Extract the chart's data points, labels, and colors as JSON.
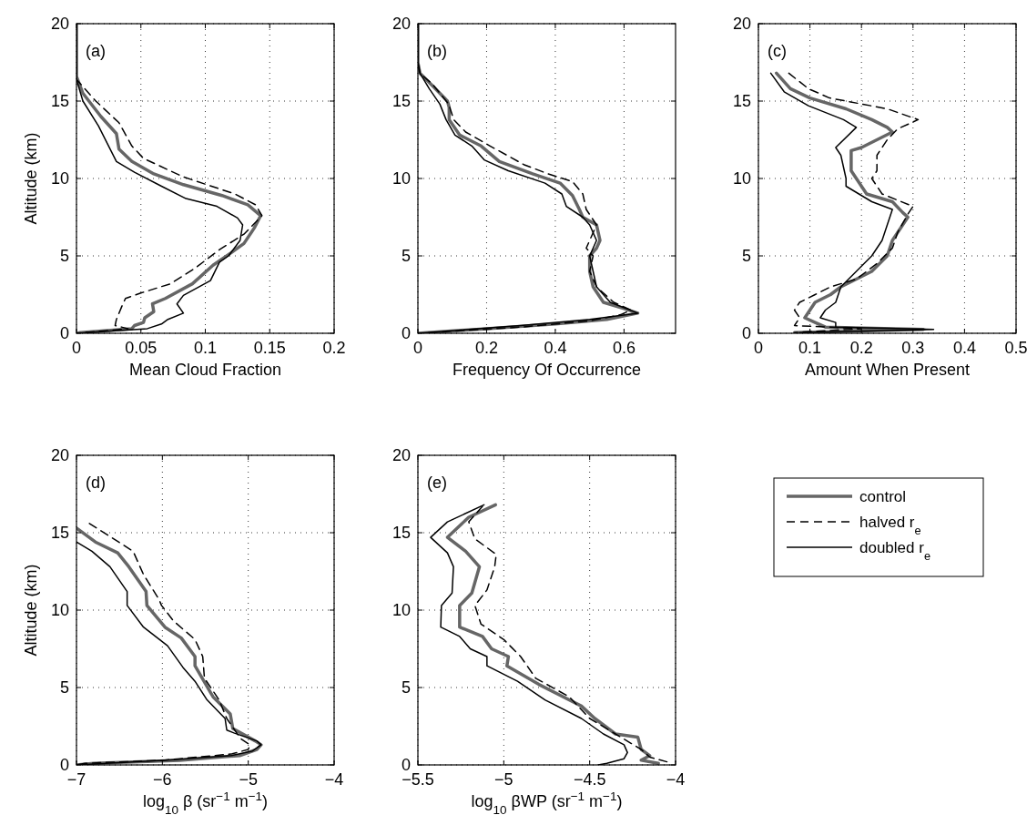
{
  "chart_data": [
    {
      "type": "line",
      "xlabel": "Mean Cloud Fraction",
      "ylabel": "Altitude (km)",
      "annotations": [
        "(a)"
      ],
      "xlim": [
        0,
        0.2
      ],
      "ylim": [
        0,
        20
      ],
      "xticks": [
        0,
        0.05,
        0.1,
        0.15,
        0.2
      ],
      "yticks": [
        0,
        5,
        10,
        15,
        20
      ],
      "grid": true,
      "legend": false,
      "series": [
        {
          "color": "#666666",
          "line_style": "solid",
          "x": [
            0,
            0,
            0.005,
            0.019,
            0.031,
            0.033,
            0.043,
            0.06,
            0.083,
            0.113,
            0.133,
            0.143,
            0.138,
            0.13,
            0.12,
            0.106,
            0.09,
            0.069,
            0.059,
            0.06,
            0.053,
            0.052,
            0.045,
            0.043,
            0.003,
            0
          ],
          "values": [
            20,
            16.6,
            15.5,
            14,
            12.9,
            11.9,
            11.1,
            10.3,
            9.6,
            8.9,
            8.3,
            7.6,
            6.8,
            5.8,
            5.2,
            4.4,
            3.2,
            2.25,
            1.9,
            1.4,
            1,
            0.7,
            0.5,
            0.3,
            0.05,
            0
          ]
        },
        {
          "color": "#000000",
          "line_style": "dashed",
          "x": [
            0,
            0,
            0.015,
            0.033,
            0.043,
            0.052,
            0.083,
            0.123,
            0.139,
            0.144,
            0.13,
            0.111,
            0.092,
            0.073,
            0.05,
            0.038,
            0.035,
            0.031,
            0.03,
            0.04,
            0
          ],
          "values": [
            20,
            16.4,
            15,
            13.6,
            12.1,
            11.3,
            10.1,
            9,
            8.3,
            7.6,
            6.4,
            5.4,
            4.2,
            3.2,
            2.6,
            2.25,
            1.7,
            0.9,
            0.5,
            0.3,
            0
          ]
        },
        {
          "color": "#000000",
          "line_style": "solid",
          "x": [
            0,
            0,
            0.005,
            0.017,
            0.031,
            0.045,
            0.066,
            0.085,
            0.109,
            0.125,
            0.129,
            0.127,
            0.118,
            0.111,
            0.104,
            0.083,
            0.078,
            0.083,
            0.071,
            0.066,
            0.055,
            0
          ],
          "values": [
            20,
            16.4,
            15,
            13.4,
            11.1,
            10.4,
            9.5,
            8.7,
            8.2,
            7.45,
            7,
            6,
            5,
            4.6,
            3.4,
            2.45,
            1.9,
            1.3,
            0.9,
            0.6,
            0.3,
            0
          ]
        }
      ]
    },
    {
      "type": "line",
      "xlabel": "Frequency Of Occurrence",
      "annotations": [
        "(b)"
      ],
      "xlim": [
        0,
        0.75
      ],
      "ylim": [
        0,
        20
      ],
      "xticks": [
        0,
        0.2,
        0.4,
        0.6
      ],
      "yticks": [
        0,
        5,
        10,
        15,
        20
      ],
      "grid": true,
      "legend": false,
      "series": [
        {
          "color": "#666666",
          "line_style": "solid",
          "x": [
            0,
            0,
            0.006,
            0.042,
            0.086,
            0.091,
            0.091,
            0.122,
            0.184,
            0.237,
            0.334,
            0.414,
            0.45,
            0.47,
            0.48,
            0.52,
            0.53,
            0.52,
            0.5,
            0.5,
            0.51,
            0.54,
            0.6,
            0.64,
            0.55,
            0.4,
            0.2,
            0
          ],
          "values": [
            20,
            17.5,
            16.8,
            16,
            15,
            14.6,
            13.8,
            12.8,
            12.1,
            11.1,
            10.3,
            9.7,
            8.9,
            8,
            7.5,
            7,
            6,
            5.5,
            5,
            4,
            3,
            2,
            1.6,
            1.3,
            0.9,
            0.6,
            0.3,
            0
          ]
        },
        {
          "color": "#000000",
          "line_style": "dashed",
          "x": [
            0,
            0,
            0.006,
            0.042,
            0.09,
            0.104,
            0.139,
            0.21,
            0.308,
            0.379,
            0.45,
            0.48,
            0.49,
            0.52,
            0.5,
            0.49,
            0.51,
            0.5,
            0.52,
            0.57,
            0.62,
            0.59,
            0.5,
            0.3,
            0
          ],
          "values": [
            20,
            17.5,
            16.8,
            16.1,
            14.8,
            13.8,
            13,
            12.1,
            10.9,
            10.3,
            9.8,
            9,
            8,
            7,
            6,
            5.5,
            5,
            4,
            3,
            2,
            1.5,
            1.2,
            0.8,
            0.4,
            0
          ]
        },
        {
          "color": "#000000",
          "line_style": "solid",
          "x": [
            0,
            0,
            0.006,
            0.033,
            0.064,
            0.082,
            0.108,
            0.157,
            0.193,
            0.263,
            0.37,
            0.419,
            0.432,
            0.48,
            0.5,
            0.52,
            0.5,
            0.51,
            0.52,
            0.56,
            0.64,
            0.5,
            0.3,
            0
          ],
          "values": [
            20,
            17.5,
            16.8,
            15.8,
            14.8,
            13.8,
            12.8,
            12.1,
            11.2,
            10.5,
            9.7,
            9,
            8.2,
            7.5,
            7,
            6,
            5,
            4,
            3,
            2,
            1.3,
            0.9,
            0.5,
            0
          ]
        }
      ]
    },
    {
      "type": "line",
      "xlabel": "Amount When Present",
      "annotations": [
        "(c)"
      ],
      "xlim": [
        0,
        0.5
      ],
      "ylim": [
        0,
        20
      ],
      "xticks": [
        0,
        0.1,
        0.2,
        0.3,
        0.4,
        0.5
      ],
      "yticks": [
        0,
        5,
        10,
        15,
        20
      ],
      "grid": true,
      "legend": false,
      "series": [
        {
          "color": "#666666",
          "line_style": "solid",
          "x": [
            0.035,
            0.062,
            0.1,
            0.17,
            0.22,
            0.25,
            0.26,
            0.2,
            0.18,
            0.18,
            0.19,
            0.21,
            0.26,
            0.28,
            0.29,
            0.28,
            0.26,
            0.25,
            0.22,
            0.19,
            0.16,
            0.14,
            0.11,
            0.1,
            0.09,
            0.11,
            0.13,
            0.32,
            0.07
          ],
          "values": [
            16.8,
            15.8,
            15.2,
            14.5,
            13.8,
            13.3,
            13,
            12,
            11.8,
            10.5,
            10,
            9,
            8.5,
            7.8,
            7.5,
            7,
            6,
            5,
            4,
            3.5,
            3,
            2.5,
            2,
            1.5,
            1,
            0.7,
            0.4,
            0.25,
            0.05
          ]
        },
        {
          "color": "#000000",
          "line_style": "dashed",
          "x": [
            0.059,
            0.097,
            0.138,
            0.25,
            0.31,
            0.27,
            0.25,
            0.23,
            0.23,
            0.22,
            0.24,
            0.3,
            0.29,
            0.27,
            0.26,
            0.23,
            0.19,
            0.14,
            0.11,
            0.08,
            0.07,
            0.08,
            0.07,
            0.2,
            0.07
          ],
          "values": [
            16.8,
            15.8,
            15.2,
            14.5,
            13.8,
            13.2,
            12.5,
            11.5,
            10.5,
            10,
            9,
            8.2,
            7.7,
            6.5,
            5.5,
            4.5,
            3.5,
            3,
            2.5,
            2,
            1.5,
            1,
            0.5,
            0.3,
            0.05
          ]
        },
        {
          "color": "#000000",
          "line_style": "solid",
          "x": [
            0.024,
            0.05,
            0.097,
            0.165,
            0.19,
            0.15,
            0.16,
            0.17,
            0.17,
            0.22,
            0.26,
            0.25,
            0.24,
            0.22,
            0.19,
            0.16,
            0.15,
            0.13,
            0.12,
            0.15,
            0.15,
            0.34,
            0.08
          ],
          "values": [
            16.8,
            15.6,
            14.7,
            13.8,
            13.3,
            12,
            11.5,
            10,
            9.5,
            8.5,
            8,
            7,
            6,
            5,
            4,
            3,
            2,
            1.5,
            1,
            0.7,
            0.4,
            0.25,
            0.05
          ]
        }
      ]
    },
    {
      "type": "line",
      "xlabel": "log$_{10}$ β (sr$^{−1}$ m$^{−1}$)",
      "ylabel": "Altitude (km)",
      "annotations": [
        "(d)"
      ],
      "xlim": [
        -7,
        -4
      ],
      "ylim": [
        0,
        20
      ],
      "xticks": [
        -7,
        -6,
        -5,
        -4
      ],
      "yticks": [
        0,
        5,
        10,
        15,
        20
      ],
      "grid": true,
      "legend": false,
      "series": [
        {
          "color": "#666666",
          "line_style": "solid",
          "x": [
            -7,
            -6.78,
            -6.52,
            -6.39,
            -6.19,
            -6.18,
            -5.97,
            -5.78,
            -5.62,
            -5.62,
            -5.41,
            -5.21,
            -5.18,
            -4.92,
            -4.85,
            -4.9,
            -5.1,
            -5.8,
            -6.8,
            -7
          ],
          "values": [
            15.3,
            14.4,
            13.7,
            12.8,
            11.2,
            10.3,
            8.9,
            8.2,
            7,
            6.4,
            4.4,
            3.3,
            2.35,
            1.55,
            1.3,
            1,
            0.6,
            0.3,
            0.1,
            0
          ]
        },
        {
          "color": "#000000",
          "line_style": "dashed",
          "x": [
            -6.85,
            -6.34,
            -6.22,
            -6.04,
            -6.01,
            -5.87,
            -5.62,
            -5.53,
            -5.51,
            -5.34,
            -5.25,
            -5.09,
            -4.98,
            -5,
            -5.2,
            -6,
            -6.9,
            -7
          ],
          "values": [
            15.6,
            13.8,
            12.3,
            10.7,
            10.3,
            9.3,
            8.1,
            7,
            5.6,
            4.2,
            3,
            1.7,
            1.3,
            1,
            0.7,
            0.3,
            0.1,
            0
          ]
        },
        {
          "color": "#000000",
          "line_style": "solid",
          "x": [
            -7,
            -6.82,
            -6.61,
            -6.41,
            -6.41,
            -6.22,
            -5.94,
            -5.76,
            -5.62,
            -5.48,
            -5.27,
            -5.25,
            -5.16,
            -4.9,
            -4.85,
            -4.95,
            -5.2,
            -6,
            -7
          ],
          "values": [
            14.4,
            13.8,
            12.8,
            11.2,
            10.3,
            8.9,
            7.7,
            6.3,
            5.4,
            4.2,
            3,
            2.25,
            2.05,
            1.55,
            1.3,
            0.9,
            0.6,
            0.3,
            0
          ]
        }
      ]
    },
    {
      "type": "line",
      "xlabel": "log$_{10}$ βWP (sr$^{−1}$ m$^{−1}$)",
      "annotations": [
        "(e)"
      ],
      "xlim": [
        -5.5,
        -4
      ],
      "ylim": [
        0,
        20
      ],
      "xticks": [
        -5.5,
        -5,
        -4.5,
        -4
      ],
      "yticks": [
        0,
        5,
        10,
        15,
        20
      ],
      "grid": true,
      "legend": "right",
      "series": [
        {
          "name": "control",
          "color": "#666666",
          "line_style": "solid",
          "x": [
            -5.048,
            -5.204,
            -5.328,
            -5.222,
            -5.142,
            -5.186,
            -5.257,
            -5.257,
            -5.124,
            -5.071,
            -4.973,
            -4.982,
            -4.796,
            -4.548,
            -4.47,
            -4.35,
            -4.22,
            -4.2,
            -4.15,
            -4.2,
            -4.1
          ],
          "values": [
            16.8,
            16,
            14.7,
            13.8,
            12.8,
            11.1,
            10.3,
            8.9,
            8.3,
            7.5,
            7,
            6.4,
            5.2,
            3.8,
            3,
            2,
            1.8,
            1,
            0.6,
            0.3,
            0.1
          ]
        },
        {
          "name": "halved r$_{e}$",
          "color": "#000000",
          "line_style": "dashed",
          "x": [
            -5.124,
            -5.204,
            -5.168,
            -5.106,
            -5.044,
            -5.053,
            -5.098,
            -5.168,
            -5.133,
            -5,
            -4.902,
            -4.814,
            -4.619,
            -4.5,
            -4.35,
            -4.2,
            -4.15,
            -4.05
          ],
          "values": [
            16.7,
            15.7,
            14.6,
            14.1,
            13.6,
            12.8,
            11.3,
            10.3,
            9.1,
            8.1,
            7,
            5.6,
            4.4,
            3,
            2,
            1,
            0.5,
            0.2
          ]
        },
        {
          "name": "doubled r$_{e}$",
          "color": "#000000",
          "line_style": "solid",
          "x": [
            -5.115,
            -5.328,
            -5.426,
            -5.328,
            -5.293,
            -5.301,
            -5.363,
            -5.367,
            -5.257,
            -5.195,
            -5.098,
            -5.098,
            -4.92,
            -4.76,
            -4.548,
            -4.42,
            -4.3,
            -4.28,
            -4.3,
            -4.4,
            -4.45
          ],
          "values": [
            16.8,
            15.7,
            14.7,
            13.7,
            12.8,
            11.1,
            10.3,
            8.9,
            8.3,
            7.5,
            7,
            6.4,
            5.4,
            4.2,
            3,
            2,
            1.3,
            0.8,
            0.4,
            0.1,
            0
          ]
        }
      ]
    }
  ]
}
